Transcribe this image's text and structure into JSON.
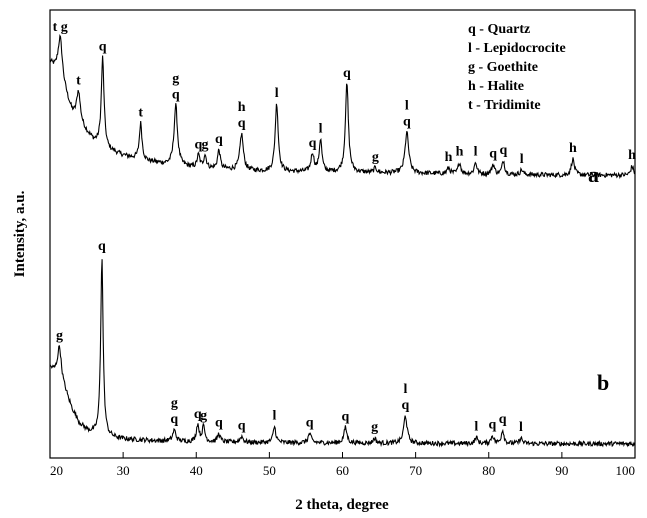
{
  "chart_data": {
    "type": "line",
    "xlabel": "2 theta, degree",
    "ylabel": "Intensity, a.u.",
    "xlim": [
      20,
      100
    ],
    "x_ticks": [
      "20",
      "30",
      "40",
      "50",
      "60",
      "70",
      "80",
      "90",
      "100"
    ],
    "y_ticks_shown": false,
    "grid": false,
    "legend_position": "top-right",
    "legend": [
      {
        "symbol": "q",
        "phase": "Quartz",
        "text": "q - Quartz"
      },
      {
        "symbol": "l",
        "phase": "Lepidocrocite",
        "text": "l - Lepidocrocite"
      },
      {
        "symbol": "g",
        "phase": "Goethite",
        "text": "g - Goethite"
      },
      {
        "symbol": "h",
        "phase": "Halite",
        "text": "h - Halite"
      },
      {
        "symbol": "t",
        "phase": "Tridimite",
        "text": "t - Tridimite"
      }
    ],
    "series": [
      {
        "name": "a",
        "baseline": [
          [
            20,
            86
          ],
          [
            21,
            80
          ],
          [
            22,
            70
          ],
          [
            23,
            58
          ],
          [
            24,
            52
          ],
          [
            25,
            47
          ],
          [
            26,
            42
          ],
          [
            28,
            37
          ],
          [
            30,
            34
          ],
          [
            33,
            31
          ],
          [
            36,
            29
          ],
          [
            40,
            27
          ],
          [
            45,
            26
          ],
          [
            50,
            25
          ],
          [
            60,
            24.5
          ],
          [
            70,
            24
          ],
          [
            80,
            23.5
          ],
          [
            90,
            23
          ],
          [
            100,
            23
          ]
        ],
        "peaks": [
          {
            "x": 21.4,
            "y": 100,
            "width": 0.35,
            "labels": [
              "t g"
            ]
          },
          {
            "x": 23.9,
            "y": 70,
            "width": 0.3,
            "labels": [
              "t"
            ]
          },
          {
            "x": 27.2,
            "y": 89,
            "width": 0.22,
            "labels": [
              "q"
            ]
          },
          {
            "x": 32.4,
            "y": 52,
            "width": 0.22,
            "labels": [
              "t"
            ]
          },
          {
            "x": 37.2,
            "y": 62,
            "width": 0.28,
            "labels": [
              "g",
              "q"
            ]
          },
          {
            "x": 40.3,
            "y": 34,
            "width": 0.22,
            "labels": [
              "q"
            ]
          },
          {
            "x": 41.2,
            "y": 34,
            "width": 0.22,
            "labels": [
              "g"
            ]
          },
          {
            "x": 43.1,
            "y": 37,
            "width": 0.22,
            "labels": [
              "q"
            ]
          },
          {
            "x": 46.2,
            "y": 46,
            "width": 0.28,
            "labels": [
              "h",
              "q"
            ]
          },
          {
            "x": 51.0,
            "y": 63,
            "width": 0.25,
            "labels": [
              "l"
            ]
          },
          {
            "x": 55.9,
            "y": 35,
            "width": 0.25,
            "labels": [
              "q"
            ]
          },
          {
            "x": 57.0,
            "y": 43,
            "width": 0.22,
            "labels": [
              "l"
            ]
          },
          {
            "x": 60.6,
            "y": 74,
            "width": 0.25,
            "labels": [
              "q"
            ]
          },
          {
            "x": 64.5,
            "y": 27,
            "width": 0.22,
            "labels": [
              "g"
            ]
          },
          {
            "x": 68.8,
            "y": 47,
            "width": 0.3,
            "labels": [
              "l",
              "q"
            ]
          },
          {
            "x": 74.5,
            "y": 27,
            "width": 0.22,
            "labels": [
              "h"
            ]
          },
          {
            "x": 76.0,
            "y": 30,
            "width": 0.22,
            "labels": [
              "h"
            ]
          },
          {
            "x": 78.2,
            "y": 30,
            "width": 0.22,
            "labels": [
              "l"
            ]
          },
          {
            "x": 80.6,
            "y": 29,
            "width": 0.22,
            "labels": [
              "q"
            ]
          },
          {
            "x": 82.0,
            "y": 31,
            "width": 0.22,
            "labels": [
              "q"
            ]
          },
          {
            "x": 84.5,
            "y": 26,
            "width": 0.22,
            "labels": [
              "l"
            ]
          },
          {
            "x": 91.5,
            "y": 32,
            "width": 0.25,
            "labels": [
              "h"
            ]
          },
          {
            "x": 99.6,
            "y": 28,
            "width": 0.22,
            "labels": [
              "h"
            ]
          }
        ]
      },
      {
        "name": "b",
        "baseline": [
          [
            20,
            45
          ],
          [
            21,
            41
          ],
          [
            22,
            33
          ],
          [
            23,
            22
          ],
          [
            24,
            14
          ],
          [
            25,
            10
          ],
          [
            26,
            8
          ],
          [
            28,
            6
          ],
          [
            30,
            5
          ],
          [
            35,
            4
          ],
          [
            40,
            3.5
          ],
          [
            50,
            3
          ],
          [
            60,
            2.8
          ],
          [
            70,
            2.6
          ],
          [
            80,
            2.5
          ],
          [
            90,
            2.4
          ],
          [
            100,
            2.4
          ]
        ],
        "peaks": [
          {
            "x": 21.3,
            "y": 57,
            "width": 0.3,
            "labels": [
              "g"
            ]
          },
          {
            "x": 27.1,
            "y": 107,
            "width": 0.2,
            "labels": [
              "q"
            ]
          },
          {
            "x": 37.0,
            "y": 10,
            "width": 0.25,
            "labels": [
              "g",
              "q"
            ]
          },
          {
            "x": 40.2,
            "y": 13,
            "width": 0.22,
            "labels": [
              "q"
            ]
          },
          {
            "x": 41.0,
            "y": 12,
            "width": 0.22,
            "labels": [
              "g"
            ]
          },
          {
            "x": 43.1,
            "y": 8,
            "width": 0.22,
            "labels": [
              "q"
            ]
          },
          {
            "x": 46.2,
            "y": 6.5,
            "width": 0.25,
            "labels": [
              "q"
            ]
          },
          {
            "x": 50.7,
            "y": 12,
            "width": 0.22,
            "labels": [
              "l"
            ]
          },
          {
            "x": 55.5,
            "y": 8,
            "width": 0.25,
            "labels": [
              "q"
            ]
          },
          {
            "x": 60.4,
            "y": 11.5,
            "width": 0.25,
            "labels": [
              "q"
            ]
          },
          {
            "x": 64.4,
            "y": 5.5,
            "width": 0.22,
            "labels": [
              "g"
            ]
          },
          {
            "x": 68.6,
            "y": 18,
            "width": 0.28,
            "labels": [
              "l",
              "q"
            ]
          },
          {
            "x": 78.3,
            "y": 6,
            "width": 0.22,
            "labels": [
              "l"
            ]
          },
          {
            "x": 80.5,
            "y": 7,
            "width": 0.22,
            "labels": [
              "q"
            ]
          },
          {
            "x": 81.9,
            "y": 10,
            "width": 0.22,
            "labels": [
              "q"
            ]
          },
          {
            "x": 84.4,
            "y": 5.5,
            "width": 0.22,
            "labels": [
              "l"
            ]
          }
        ]
      }
    ]
  }
}
